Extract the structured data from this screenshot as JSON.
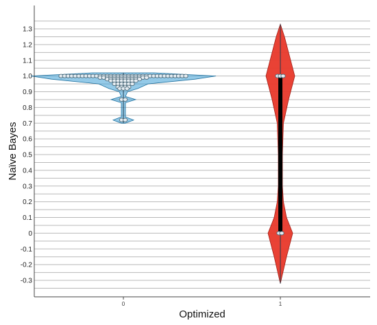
{
  "chart_data": {
    "type": "violin",
    "title": "",
    "xlabel": "Optimized",
    "ylabel": "Naïve Bayes",
    "categories": [
      "0",
      "1"
    ],
    "ylim": [
      -0.38,
      1.38
    ],
    "yticks": [
      1.3,
      1.2,
      1.1,
      1.0,
      0.9,
      0.8,
      0.7,
      0.6,
      0.5,
      0.4,
      0.3,
      0.2,
      0.1,
      0,
      -0.1,
      -0.2,
      -0.3
    ],
    "ytick_labels": [
      "1.3",
      "1.2",
      "1.1",
      "1.0",
      "0.9",
      "0.8",
      "0.7",
      "0.6",
      "0.5",
      "0.4",
      "0.3",
      "0.2",
      "0.1",
      "0",
      "-0.1",
      "-0.2",
      "-0.3"
    ],
    "grid": true,
    "series": [
      {
        "category": "0",
        "color": "#3d9fd6",
        "violin_range": [
          0.7,
          1.02
        ],
        "profile": [
          {
            "y": 0.7,
            "w": 0.01
          },
          {
            "y": 0.72,
            "w": 0.05
          },
          {
            "y": 0.74,
            "w": 0.01
          },
          {
            "y": 0.83,
            "w": 0.01
          },
          {
            "y": 0.85,
            "w": 0.06
          },
          {
            "y": 0.87,
            "w": 0.01
          },
          {
            "y": 0.9,
            "w": 0.02
          },
          {
            "y": 0.92,
            "w": 0.07
          },
          {
            "y": 0.95,
            "w": 0.12
          },
          {
            "y": 0.98,
            "w": 0.35
          },
          {
            "y": 1.0,
            "w": 0.45
          },
          {
            "y": 1.02,
            "w": 0.15
          }
        ],
        "points": [
          {
            "y": 1.0,
            "n": 36
          },
          {
            "y": 0.99,
            "n": 14
          },
          {
            "y": 0.98,
            "n": 10
          },
          {
            "y": 0.97,
            "n": 8
          },
          {
            "y": 0.95,
            "n": 6
          },
          {
            "y": 0.93,
            "n": 4
          },
          {
            "y": 0.92,
            "n": 3
          },
          {
            "y": 0.85,
            "n": 2
          },
          {
            "y": 0.72,
            "n": 2
          }
        ]
      },
      {
        "category": "1",
        "color": "#e8382a",
        "violin_range": [
          -0.32,
          1.33
        ],
        "profile": [
          {
            "y": -0.32,
            "w": 0.0
          },
          {
            "y": -0.15,
            "w": 0.03
          },
          {
            "y": 0.0,
            "w": 0.06
          },
          {
            "y": 0.1,
            "w": 0.03
          },
          {
            "y": 0.2,
            "w": 0.015
          },
          {
            "y": 0.3,
            "w": 0.01
          },
          {
            "y": 0.5,
            "w": 0.01
          },
          {
            "y": 0.7,
            "w": 0.015
          },
          {
            "y": 0.85,
            "w": 0.04
          },
          {
            "y": 1.0,
            "w": 0.07
          },
          {
            "y": 1.15,
            "w": 0.04
          },
          {
            "y": 1.25,
            "w": 0.02
          },
          {
            "y": 1.33,
            "w": 0.0
          }
        ],
        "points": [
          {
            "y": 1.0,
            "n": 3
          },
          {
            "y": 0.0,
            "n": 2
          }
        ],
        "iqr": [
          0.0,
          1.0
        ]
      }
    ]
  }
}
